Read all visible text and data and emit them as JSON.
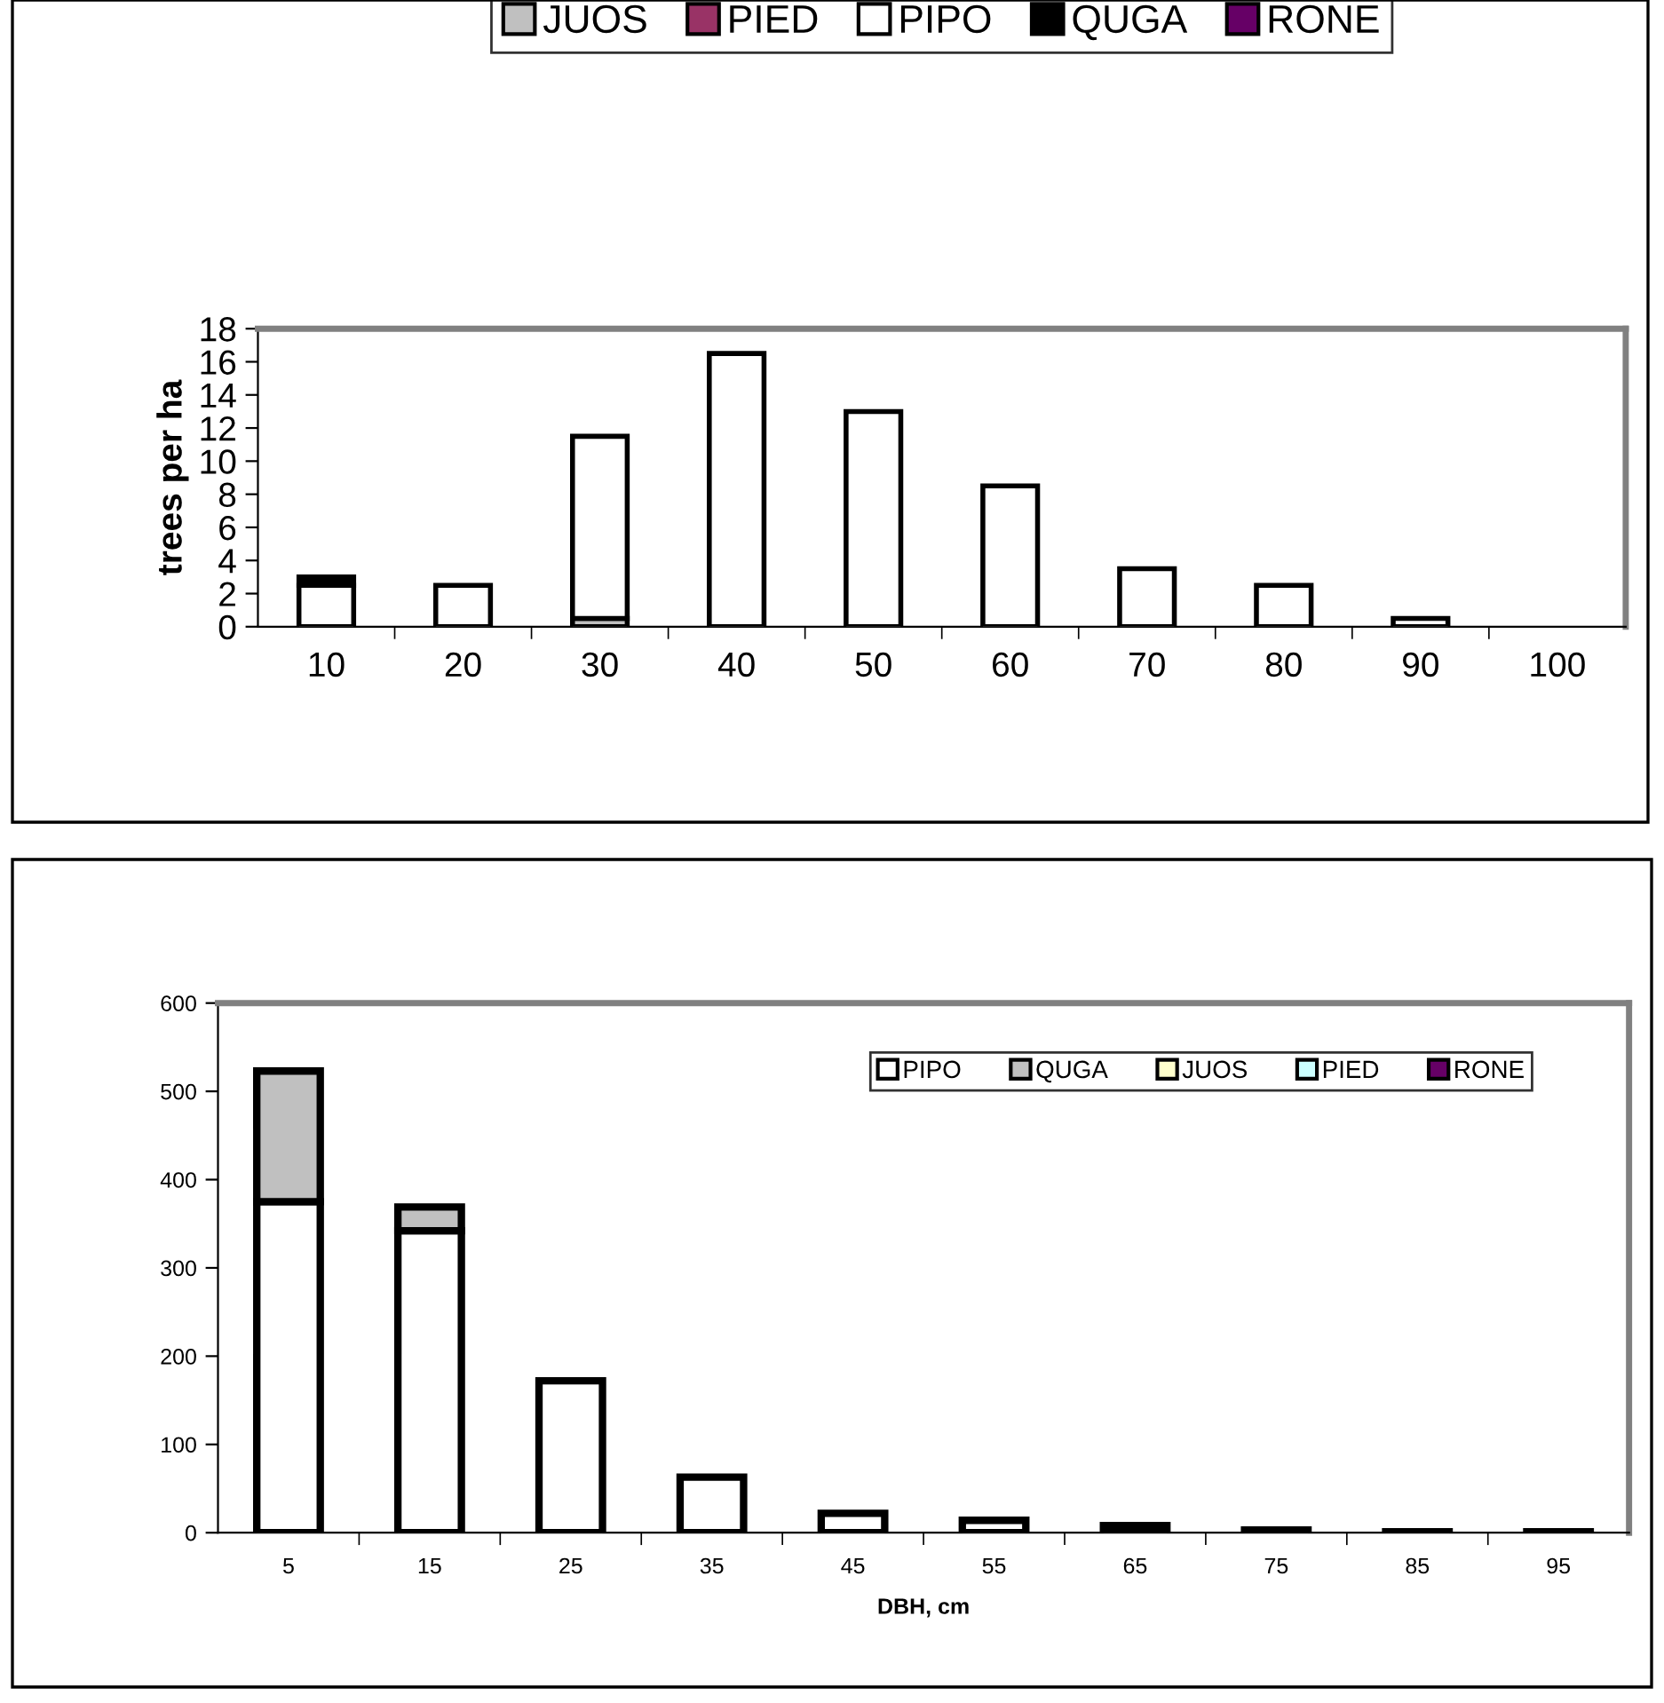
{
  "chart_data": [
    {
      "type": "bar",
      "ylabel": "trees per ha",
      "categories": [
        "10",
        "20",
        "30",
        "40",
        "50",
        "60",
        "70",
        "80",
        "90",
        "100"
      ],
      "stacked": true,
      "ylim": [
        0,
        18
      ],
      "yticks": [
        0,
        2,
        4,
        6,
        8,
        10,
        12,
        14,
        16,
        18
      ],
      "grid": false,
      "legend": "top",
      "series": [
        {
          "name": "JUOS",
          "color": "#c0c0c0",
          "values": [
            0,
            0,
            0.5,
            0,
            0,
            0,
            0,
            0,
            0,
            0
          ]
        },
        {
          "name": "PIED",
          "color": "#993366",
          "values": [
            0,
            0,
            0,
            0,
            0,
            0,
            0,
            0,
            0,
            0
          ]
        },
        {
          "name": "PIPO",
          "color": "#ffffff",
          "values": [
            2.5,
            2.5,
            11,
            16.5,
            13,
            8.5,
            3.5,
            2.5,
            0.5,
            0
          ]
        },
        {
          "name": "QUGA",
          "color": "#000000",
          "values": [
            0.5,
            0,
            0,
            0,
            0,
            0,
            0,
            0,
            0,
            0
          ]
        },
        {
          "name": "RONE",
          "color": "#660066",
          "values": [
            0,
            0,
            0,
            0,
            0,
            0,
            0,
            0,
            0,
            0
          ]
        }
      ]
    },
    {
      "type": "bar",
      "xlabel": "DBH, cm",
      "categories": [
        "5",
        "15",
        "25",
        "35",
        "45",
        "55",
        "65",
        "75",
        "85",
        "95"
      ],
      "stacked": true,
      "ylim": [
        0,
        600
      ],
      "yticks": [
        0,
        100,
        200,
        300,
        400,
        500,
        600
      ],
      "grid": false,
      "legend": "top right",
      "series": [
        {
          "name": "PIPO",
          "color": "#ffffff",
          "values": [
            375,
            342,
            172,
            63,
            22,
            14,
            8,
            3,
            1,
            1
          ]
        },
        {
          "name": "QUGA",
          "color": "#c0c0c0",
          "values": [
            148,
            27,
            0,
            0,
            0,
            0,
            0,
            0,
            0,
            0
          ]
        },
        {
          "name": "JUOS",
          "color": "#ffffcc",
          "values": [
            0,
            0,
            0,
            0,
            0,
            0,
            0,
            0,
            0,
            0
          ]
        },
        {
          "name": "PIED",
          "color": "#ccffff",
          "values": [
            0,
            0,
            0,
            0,
            0,
            0,
            0,
            0,
            0,
            0
          ]
        },
        {
          "name": "RONE",
          "color": "#660066",
          "values": [
            0,
            0,
            0,
            0,
            0,
            0,
            0,
            0,
            0,
            0
          ]
        }
      ]
    }
  ]
}
